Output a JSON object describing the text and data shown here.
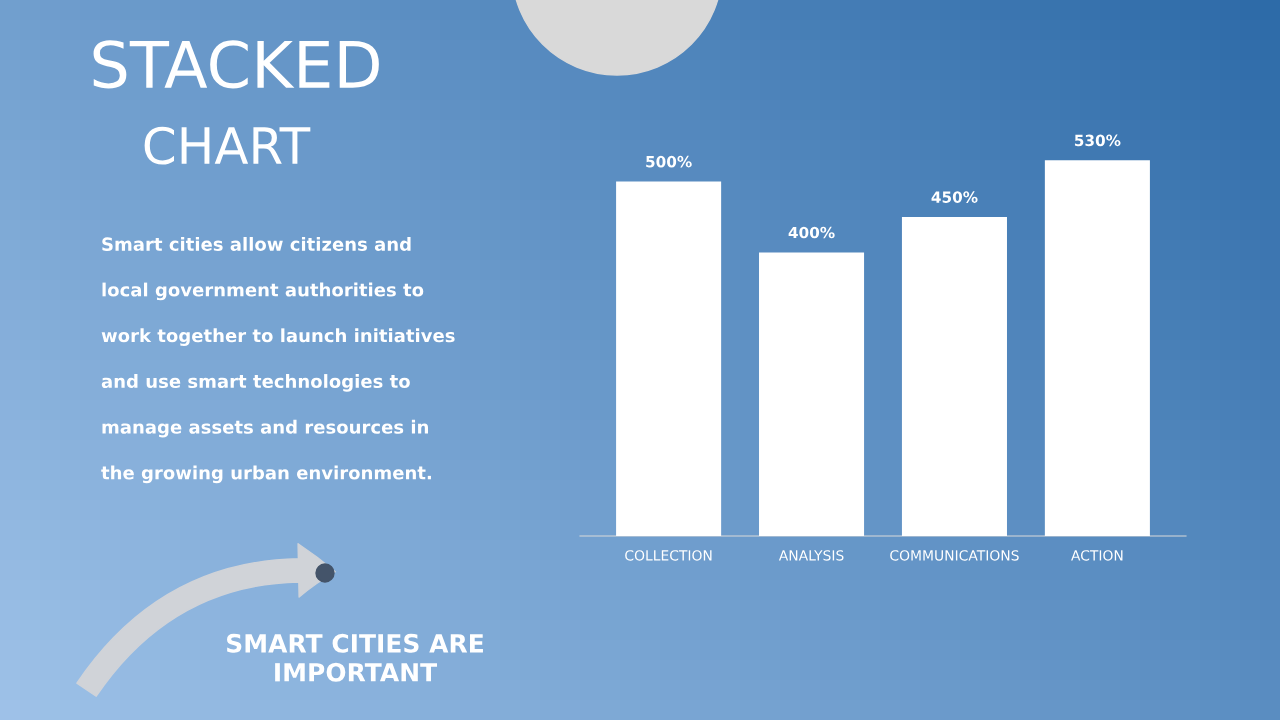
{
  "chart_data": {
    "type": "bar",
    "title": "STACKED",
    "subtitle": "CHART",
    "categories": [
      "COLLECTION",
      "ANALYSIS",
      "COMMUNICATIONS",
      "ACTION"
    ],
    "values": [
      500,
      400,
      450,
      530
    ],
    "value_labels": [
      "500%",
      "400%",
      "450%",
      "530%"
    ],
    "color": "#ffffff",
    "annotations": [
      "Smart cities allow citizens and\nlocal government authorities to\nwork together to launch initiatives\nand use smart technologies to\nmanage assets and resources in\nthe growing urban environment.",
      "SMART CITIES ARE\nIMPORTANT"
    ],
    "tick_labels": "x",
    "grid": false,
    "legend": false
  }
}
